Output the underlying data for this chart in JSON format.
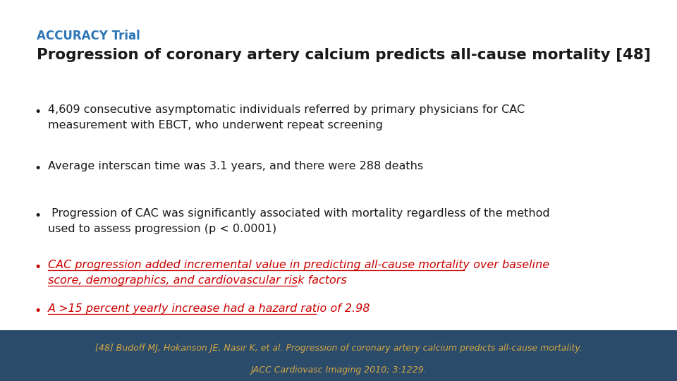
{
  "title_small": "ACCURACY Trial",
  "title_large": "Progression of coronary artery calcium predicts all-cause mortality [48]",
  "title_small_color": "#2E75B6",
  "title_large_color": "#1a1a1a",
  "bullets_black": [
    [
      "4,609 consecutive asymptomatic individuals referred by primary physicians for CAC",
      "measurement with EBCT, who underwent repeat screening"
    ],
    [
      "Average interscan time was 3.1 years, and there were 288 deaths"
    ],
    [
      " Progression of CAC was significantly associated with mortality regardless of the method",
      "used to assess progression (p < 0.0001)"
    ]
  ],
  "bullets_red": [
    [
      "CAC progression added incremental value in predicting all-cause mortality over baseline",
      "score, demographics, and cardiovascular risk factors"
    ],
    [
      "A >15 percent yearly increase had a hazard ratio of 2.98"
    ]
  ],
  "footer_line1": "[48] Budoff MJ, Hokanson JE, Nasir K, et al. Progression of coronary artery calcium predicts all-cause mortality.",
  "footer_line2": "JACC Cardiovasc Imaging 2010; 3:1229.",
  "footer_bg_color": "#2B4B6B",
  "footer_text_color": "#D4A843",
  "background_color": "#FFFFFF",
  "bullet_black_color": "#1a1a1a",
  "bullet_red_color": "#CC0000",
  "fig_width": 9.6,
  "fig_height": 5.4,
  "dpi": 100
}
